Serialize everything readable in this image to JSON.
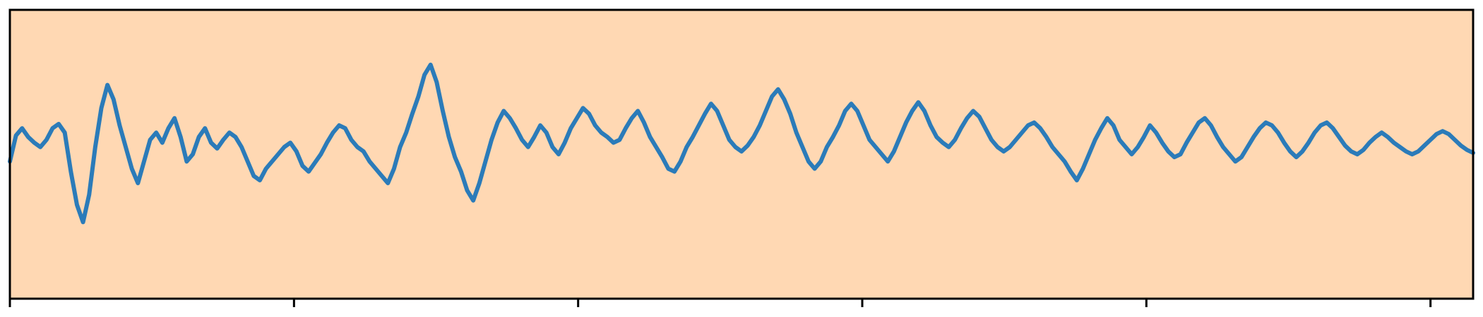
{
  "chart_data": {
    "type": "line",
    "title": "",
    "xlabel": "",
    "ylabel": "",
    "xlim": [
      0,
      1030
    ],
    "ylim": [
      -1.0,
      1.0
    ],
    "grid": false,
    "legend": "none",
    "x_ticks": [
      0,
      200,
      400,
      600,
      800,
      1000
    ],
    "y_ticks": [],
    "x_tick_labels": [],
    "background": "#ffd8b3",
    "line_color": "#2b7bb9",
    "series": [
      {
        "values": [
          -0.05,
          0.13,
          0.18,
          0.12,
          0.08,
          0.05,
          0.1,
          0.18,
          0.21,
          0.15,
          -0.12,
          -0.35,
          -0.47,
          -0.28,
          0.05,
          0.32,
          0.48,
          0.38,
          0.2,
          0.05,
          -0.1,
          -0.2,
          -0.05,
          0.1,
          0.15,
          0.08,
          0.18,
          0.25,
          0.12,
          -0.05,
          0.0,
          0.12,
          0.18,
          0.08,
          0.04,
          0.1,
          0.15,
          0.12,
          0.05,
          -0.05,
          -0.15,
          -0.18,
          -0.1,
          -0.05,
          0.0,
          0.05,
          0.08,
          0.02,
          -0.08,
          -0.12,
          -0.06,
          0.0,
          0.08,
          0.15,
          0.2,
          0.18,
          0.1,
          0.05,
          0.02,
          -0.05,
          -0.1,
          -0.15,
          -0.2,
          -0.1,
          0.05,
          0.15,
          0.28,
          0.4,
          0.55,
          0.62,
          0.5,
          0.3,
          0.12,
          -0.02,
          -0.12,
          -0.25,
          -0.32,
          -0.2,
          -0.05,
          0.1,
          0.22,
          0.3,
          0.25,
          0.18,
          0.1,
          0.05,
          0.12,
          0.2,
          0.15,
          0.05,
          0.0,
          0.08,
          0.18,
          0.25,
          0.32,
          0.28,
          0.2,
          0.15,
          0.12,
          0.08,
          0.1,
          0.18,
          0.25,
          0.3,
          0.22,
          0.12,
          0.05,
          -0.02,
          -0.1,
          -0.12,
          -0.05,
          0.05,
          0.12,
          0.2,
          0.28,
          0.35,
          0.3,
          0.2,
          0.1,
          0.05,
          0.02,
          0.06,
          0.12,
          0.2,
          0.3,
          0.4,
          0.45,
          0.38,
          0.28,
          0.15,
          0.05,
          -0.05,
          -0.1,
          -0.05,
          0.05,
          0.12,
          0.2,
          0.3,
          0.35,
          0.3,
          0.2,
          0.1,
          0.05,
          0.0,
          -0.05,
          0.02,
          0.12,
          0.22,
          0.3,
          0.36,
          0.3,
          0.2,
          0.12,
          0.08,
          0.05,
          0.1,
          0.18,
          0.25,
          0.3,
          0.26,
          0.18,
          0.1,
          0.05,
          0.02,
          0.05,
          0.1,
          0.15,
          0.2,
          0.22,
          0.18,
          0.12,
          0.05,
          0.0,
          -0.05,
          -0.12,
          -0.18,
          -0.1,
          0.0,
          0.1,
          0.18,
          0.25,
          0.2,
          0.1,
          0.05,
          0.0,
          0.05,
          0.12,
          0.2,
          0.15,
          0.08,
          0.02,
          -0.02,
          0.0,
          0.08,
          0.15,
          0.22,
          0.25,
          0.2,
          0.12,
          0.05,
          0.0,
          -0.05,
          -0.02,
          0.05,
          0.12,
          0.18,
          0.22,
          0.2,
          0.15,
          0.08,
          0.02,
          -0.02,
          0.02,
          0.08,
          0.15,
          0.2,
          0.22,
          0.18,
          0.12,
          0.06,
          0.02,
          0.0,
          0.03,
          0.08,
          0.12,
          0.15,
          0.12,
          0.08,
          0.05,
          0.02,
          0.0,
          0.02,
          0.06,
          0.1,
          0.14,
          0.16,
          0.14,
          0.1,
          0.06,
          0.03,
          0.01
        ]
      }
    ]
  }
}
